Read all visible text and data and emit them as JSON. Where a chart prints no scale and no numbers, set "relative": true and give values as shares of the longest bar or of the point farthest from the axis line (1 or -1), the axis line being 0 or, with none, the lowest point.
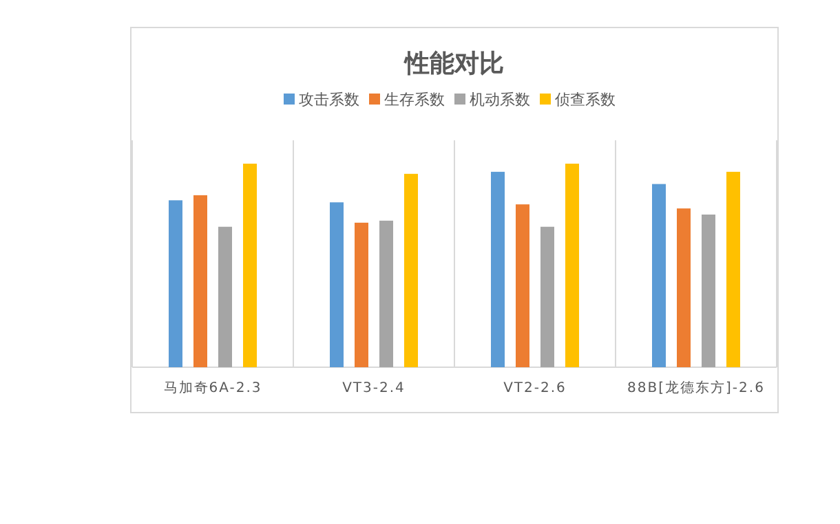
{
  "chart_data": {
    "type": "bar",
    "title": "性能对比",
    "relative": true,
    "grid": "x",
    "legend": "top",
    "categories": [
      "马加奇6A-2.3",
      "VT3-2.4",
      "VT2-2.6",
      "88B[龙德东方]-2.6"
    ],
    "series": [
      {
        "name": "攻击系数",
        "color": "#5b9bd5",
        "values": [
          0.82,
          0.81,
          0.96,
          0.9
        ]
      },
      {
        "name": "生存系数",
        "color": "#ed7d31",
        "values": [
          0.845,
          0.71,
          0.8,
          0.78
        ]
      },
      {
        "name": "机动系数",
        "color": "#a5a5a5",
        "values": [
          0.69,
          0.72,
          0.69,
          0.75
        ]
      },
      {
        "name": "侦查系数",
        "color": "#ffc000",
        "values": [
          1,
          0.95,
          1,
          0.96
        ]
      }
    ]
  }
}
